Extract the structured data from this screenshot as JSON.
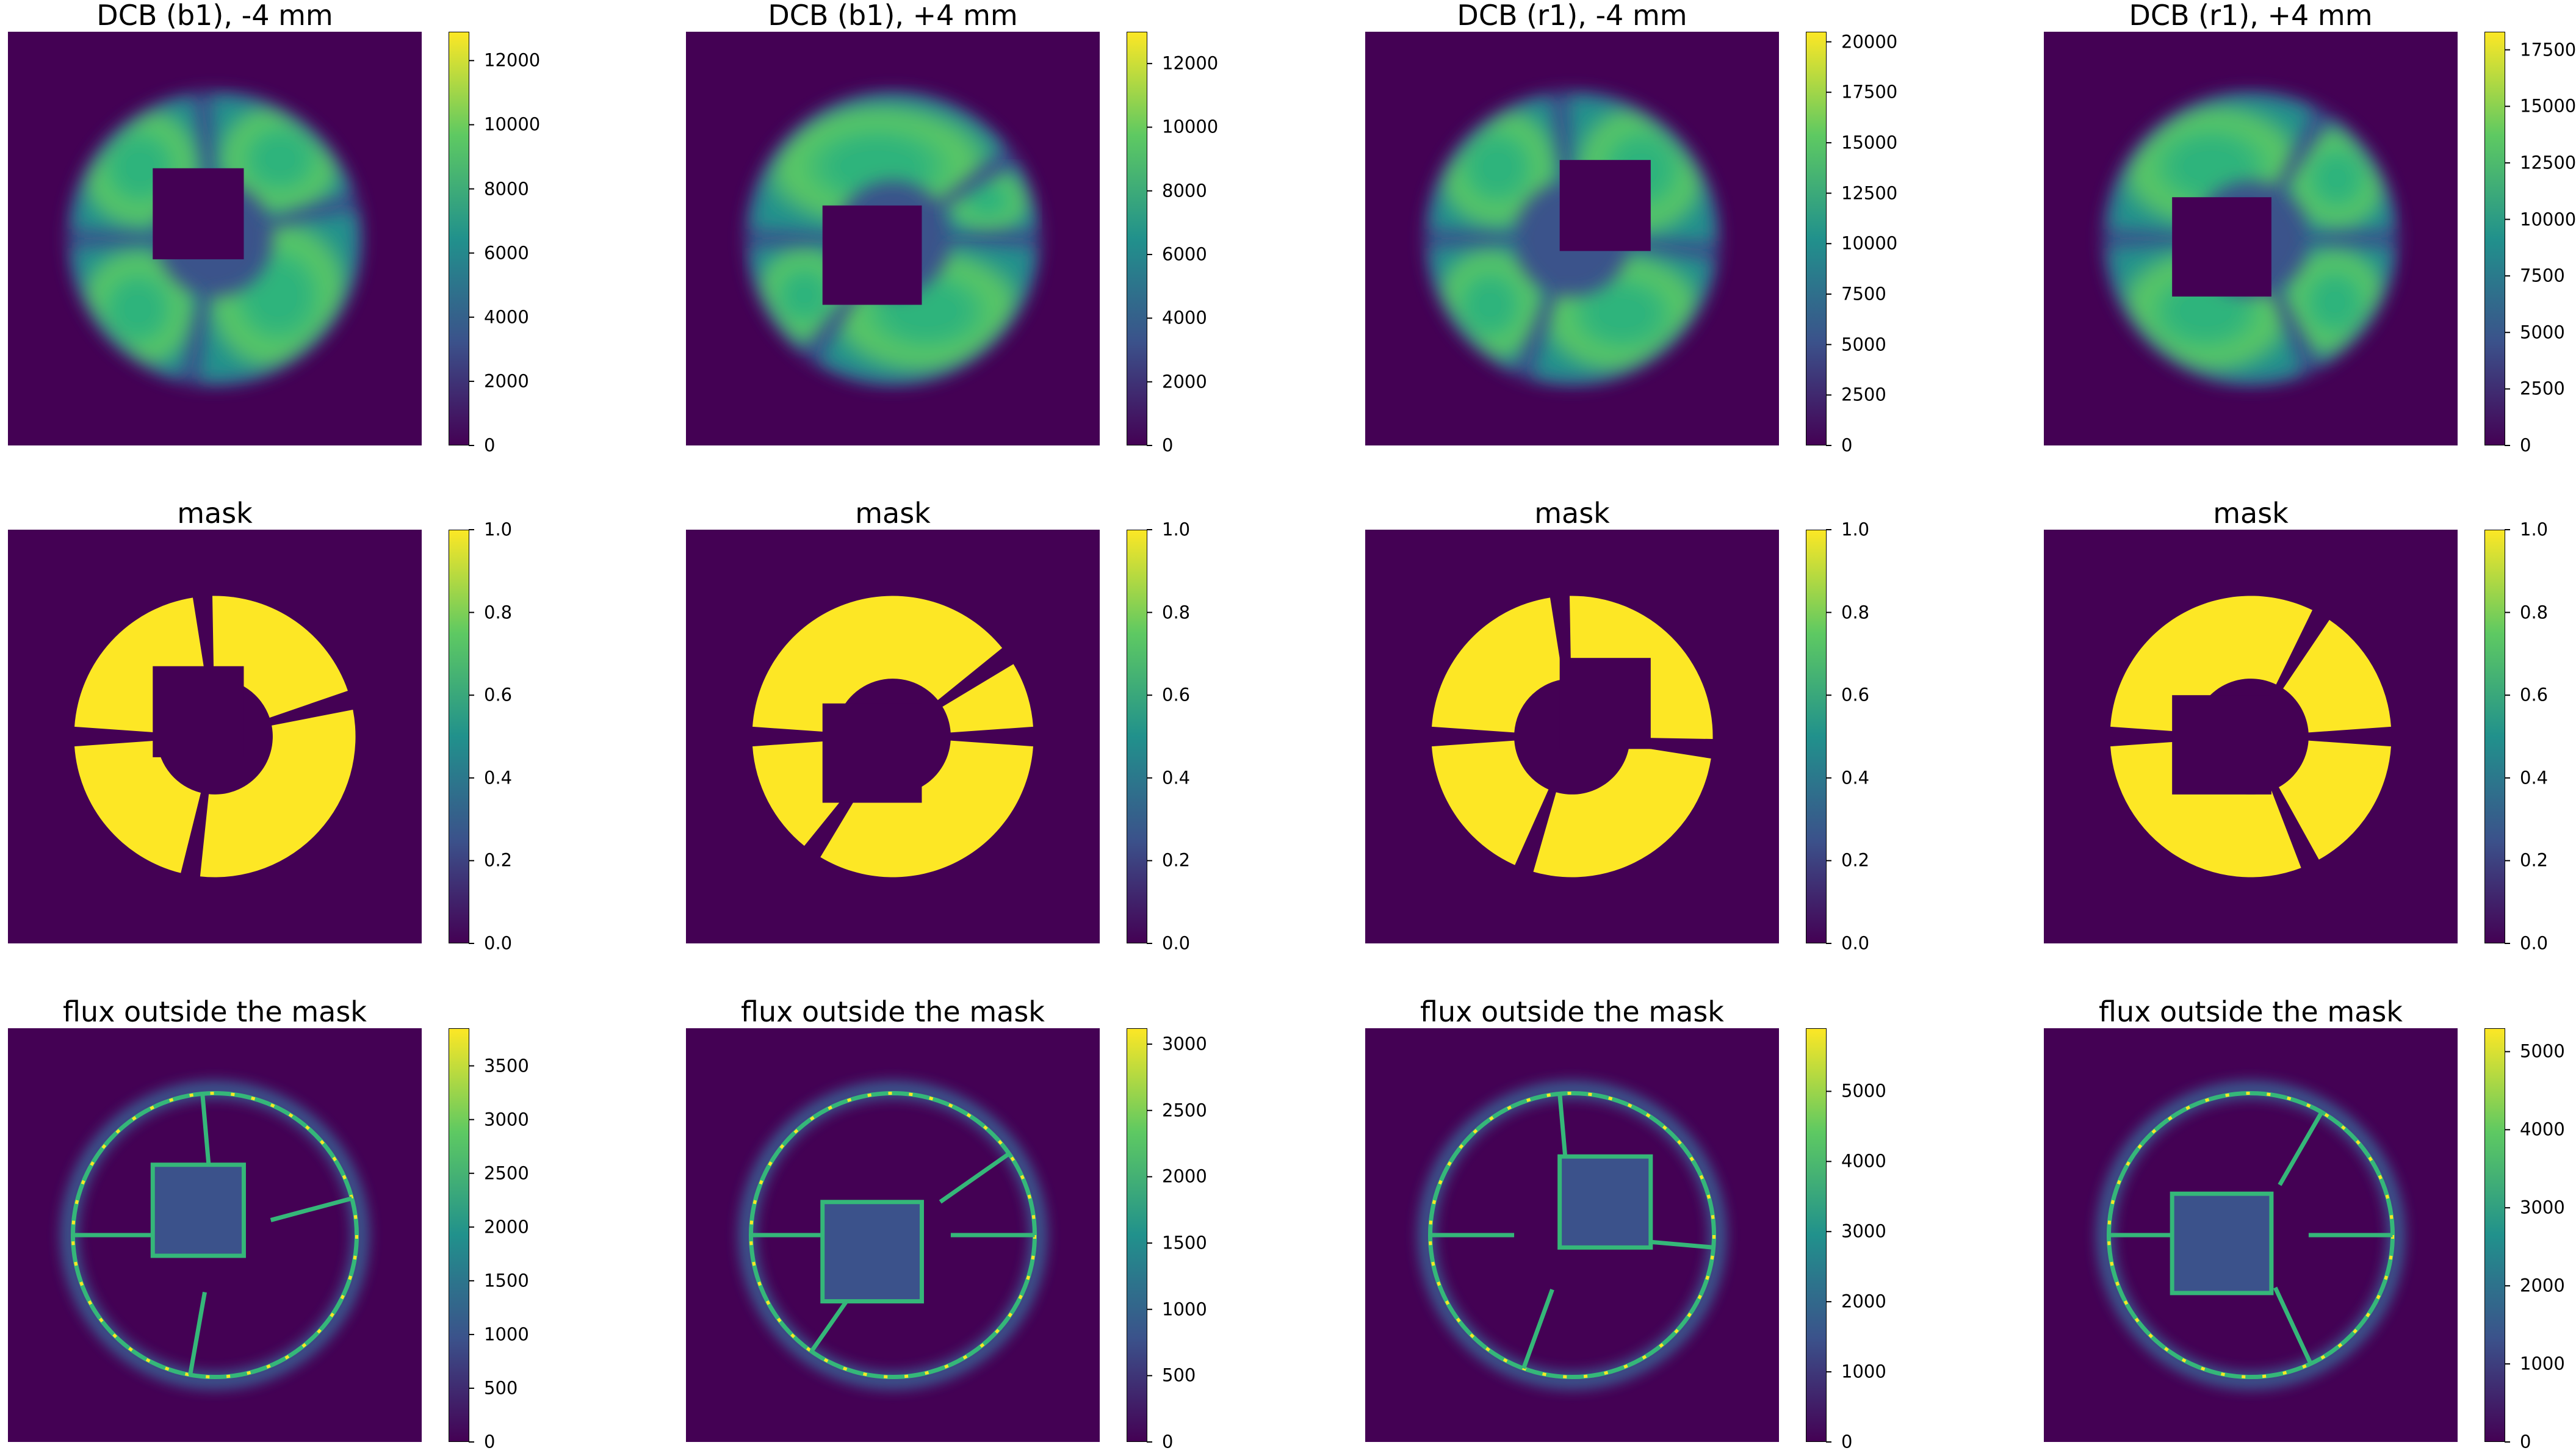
{
  "chart_data": [
    {
      "type": "heatmap",
      "title": "DCB (b1), -4 mm",
      "pattern": "ring-b1-minus",
      "colormap": "viridis",
      "colorbar": {
        "min": 0,
        "max": 12900,
        "ticks": [
          0,
          2000,
          4000,
          6000,
          8000,
          10000,
          12000
        ]
      }
    },
    {
      "type": "heatmap",
      "title": "DCB (b1), +4 mm",
      "pattern": "ring-b1-plus",
      "colormap": "viridis",
      "colorbar": {
        "min": 0,
        "max": 13000,
        "ticks": [
          0,
          2000,
          4000,
          6000,
          8000,
          10000,
          12000
        ]
      }
    },
    {
      "type": "heatmap",
      "title": "DCB (r1), -4 mm",
      "pattern": "ring-r1-minus",
      "colormap": "viridis",
      "colorbar": {
        "min": 0,
        "max": 20500,
        "ticks": [
          0,
          2500,
          5000,
          7500,
          10000,
          12500,
          15000,
          17500,
          20000
        ]
      }
    },
    {
      "type": "heatmap",
      "title": "DCB (r1), +4 mm",
      "pattern": "ring-r1-plus",
      "colormap": "viridis",
      "colorbar": {
        "min": 0,
        "max": 18300,
        "ticks": [
          0,
          2500,
          5000,
          7500,
          10000,
          12500,
          15000,
          17500
        ]
      }
    },
    {
      "type": "heatmap",
      "title": "mask",
      "pattern": "mask-b1-minus",
      "colormap": "viridis",
      "colorbar": {
        "min": 0,
        "max": 1,
        "ticks": [
          "0.0",
          "0.2",
          "0.4",
          "0.6",
          "0.8",
          "1.0"
        ]
      }
    },
    {
      "type": "heatmap",
      "title": "mask",
      "pattern": "mask-b1-plus",
      "colormap": "viridis",
      "colorbar": {
        "min": 0,
        "max": 1,
        "ticks": [
          "0.0",
          "0.2",
          "0.4",
          "0.6",
          "0.8",
          "1.0"
        ]
      }
    },
    {
      "type": "heatmap",
      "title": "mask",
      "pattern": "mask-r1-minus",
      "colormap": "viridis",
      "colorbar": {
        "min": 0,
        "max": 1,
        "ticks": [
          "0.0",
          "0.2",
          "0.4",
          "0.6",
          "0.8",
          "1.0"
        ]
      }
    },
    {
      "type": "heatmap",
      "title": "mask",
      "pattern": "mask-r1-plus",
      "colormap": "viridis",
      "colorbar": {
        "min": 0,
        "max": 1,
        "ticks": [
          "0.0",
          "0.2",
          "0.4",
          "0.6",
          "0.8",
          "1.0"
        ]
      }
    },
    {
      "type": "heatmap",
      "title": "flux outside the mask",
      "pattern": "edge-b1-minus",
      "colormap": "viridis",
      "colorbar": {
        "min": 0,
        "max": 3850,
        "ticks": [
          0,
          500,
          1000,
          1500,
          2000,
          2500,
          3000,
          3500
        ]
      }
    },
    {
      "type": "heatmap",
      "title": "flux outside the mask",
      "pattern": "edge-b1-plus",
      "colormap": "viridis",
      "colorbar": {
        "min": 0,
        "max": 3120,
        "ticks": [
          0,
          500,
          1000,
          1500,
          2000,
          2500,
          3000
        ]
      }
    },
    {
      "type": "heatmap",
      "title": "flux outside the mask",
      "pattern": "edge-r1-minus",
      "colormap": "viridis",
      "colorbar": {
        "min": 0,
        "max": 5900,
        "ticks": [
          0,
          1000,
          2000,
          3000,
          4000,
          5000
        ]
      }
    },
    {
      "type": "heatmap",
      "title": "flux outside the mask",
      "pattern": "edge-r1-plus",
      "colormap": "viridis",
      "colorbar": {
        "min": 0,
        "max": 5300,
        "ticks": [
          0,
          1000,
          2000,
          3000,
          4000,
          5000
        ]
      }
    }
  ],
  "colors": {
    "background": "#440154",
    "mask_on": "#fde725",
    "edge": "#35b779",
    "edge_hot": "#fde725",
    "inner_square": "#3b528b"
  }
}
